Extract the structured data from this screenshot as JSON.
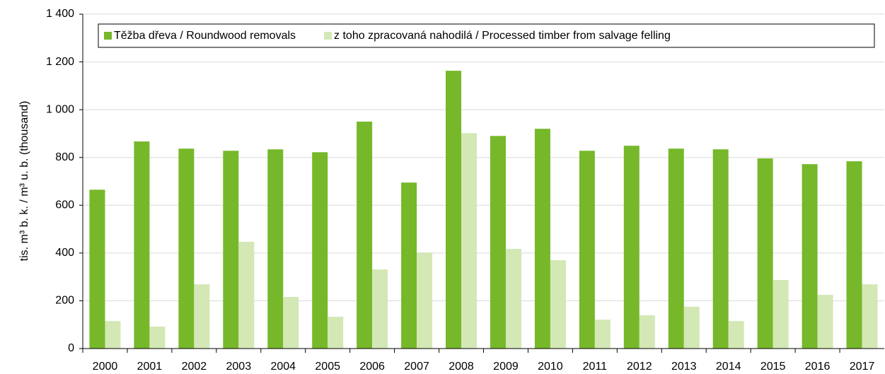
{
  "chart_data": {
    "type": "bar",
    "y_label": "tis. m³ b. k. / m³ u. b. (thousand)",
    "categories": [
      "2000",
      "2001",
      "2002",
      "2003",
      "2004",
      "2005",
      "2006",
      "2007",
      "2008",
      "2009",
      "2010",
      "2011",
      "2012",
      "2013",
      "2014",
      "2015",
      "2016",
      "2017"
    ],
    "series": [
      {
        "name": "Těžba dřeva / Roundwood removals",
        "color": "#76b82a",
        "values": [
          665,
          867,
          837,
          828,
          834,
          822,
          950,
          695,
          1163,
          890,
          920,
          828,
          849,
          837,
          834,
          796,
          772,
          784
        ]
      },
      {
        "name": "z toho zpracovaná nahodilá / Processed timber from salvage felling",
        "color": "#d3e8b5",
        "values": [
          115,
          92,
          269,
          447,
          216,
          133,
          331,
          402,
          902,
          417,
          370,
          121,
          139,
          175,
          115,
          287,
          225,
          269
        ]
      }
    ],
    "ylim": [
      0,
      1400
    ],
    "yticks": [
      0,
      200,
      400,
      600,
      800,
      {
        "value": 1000,
        "label": "1 000"
      },
      {
        "value": 1200,
        "label": "1 200"
      },
      {
        "value": 1400,
        "label": "1 400"
      }
    ],
    "grid": true,
    "legend": "top"
  }
}
